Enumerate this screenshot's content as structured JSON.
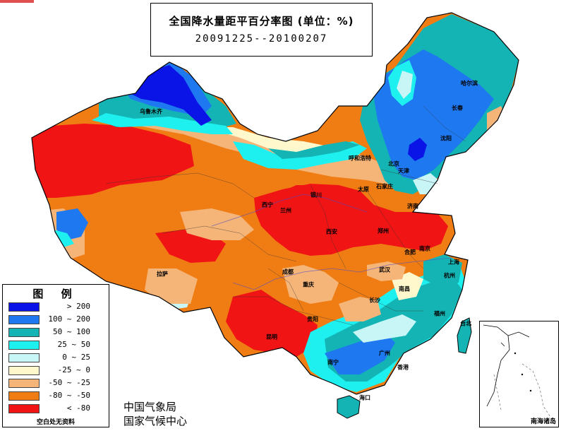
{
  "title": {
    "main": "全国降水量距平百分率图 (单位：%)",
    "date_range": "20091225--20100207"
  },
  "legend": {
    "title": "图 例",
    "items": [
      {
        "label": "> 200",
        "color": "#0a14e6"
      },
      {
        "label": "100 ~ 200",
        "color": "#1e78f0"
      },
      {
        "label": "50 ~ 100",
        "color": "#14b4b4"
      },
      {
        "label": "25 ~ 50",
        "color": "#1ef0f0"
      },
      {
        "label": "0 ~ 25",
        "color": "#c8f5f5"
      },
      {
        "label": "-25 ~ 0",
        "color": "#fff8cc"
      },
      {
        "label": "-50 ~ -25",
        "color": "#f5b478"
      },
      {
        "label": "-80 ~ -50",
        "color": "#f07d14"
      },
      {
        "label": "< -80",
        "color": "#f01414"
      }
    ],
    "note": "空白处无资料"
  },
  "organizations": [
    "中国气象局",
    "国家气候中心"
  ],
  "inset": {
    "label": "南海诸岛"
  },
  "colors": {
    "lt_m80": "#f01414",
    "m80_m50": "#f07d14",
    "m50_m25": "#f5b478",
    "m25_0": "#fff8cc",
    "z_25": "#c8f5f5",
    "p25_50": "#1ef0f0",
    "p50_100": "#14b4b4",
    "p100_200": "#1e78f0",
    "gt_200": "#0a14e6"
  },
  "cities": [
    "乌鲁木齐",
    "哈尔滨",
    "长春",
    "沈阳",
    "呼和浩特",
    "北京",
    "天津",
    "太原",
    "石家庄",
    "银川",
    "西宁",
    "兰州",
    "济南",
    "西安",
    "郑州",
    "合肥",
    "南京",
    "上海",
    "成都",
    "拉萨",
    "重庆",
    "武汉",
    "杭州",
    "长沙",
    "南昌",
    "福州",
    "贵阳",
    "昆明",
    "台北",
    "南宁",
    "广州",
    "香港",
    "海口"
  ]
}
